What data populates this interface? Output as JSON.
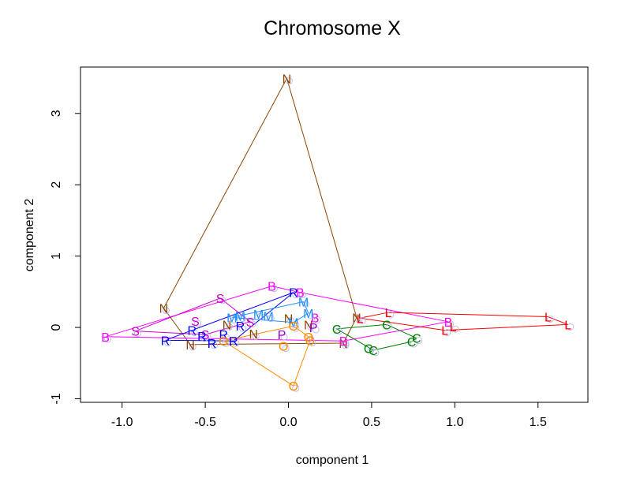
{
  "chart_data": {
    "type": "scatter",
    "title": "Chromosome X",
    "xlabel": "component 1",
    "ylabel": "component 2",
    "xlim": [
      -1.25,
      1.8
    ],
    "ylim": [
      -1.05,
      3.65
    ],
    "xticks": [
      -1.0,
      -0.5,
      0.0,
      0.5,
      1.0,
      1.5
    ],
    "xtick_labels": [
      "-1.0",
      "-0.5",
      "0.0",
      "0.5",
      "1.0",
      "1.5"
    ],
    "yticks": [
      -1,
      0,
      1,
      2,
      3
    ],
    "ytick_labels": [
      "-1",
      "0",
      "1",
      "2",
      "3"
    ],
    "grid": false,
    "legend": "none",
    "series": [
      {
        "name": "N",
        "label": "N",
        "color": "#8B4500",
        "points": [
          [
            -0.01,
            3.49
          ],
          [
            -0.75,
            0.27
          ],
          [
            -0.59,
            -0.24
          ],
          [
            -0.37,
            0.04
          ],
          [
            -0.21,
            -0.09
          ],
          [
            0.0,
            0.13
          ],
          [
            0.12,
            0.04
          ],
          [
            0.41,
            0.14
          ],
          [
            0.33,
            -0.22
          ]
        ],
        "hull": [
          [
            -0.01,
            3.49
          ],
          [
            -0.75,
            0.27
          ],
          [
            -0.59,
            -0.24
          ],
          [
            0.33,
            -0.22
          ],
          [
            0.41,
            0.14
          ]
        ]
      },
      {
        "name": "B",
        "label": "B",
        "color": "#FF00FF",
        "points": [
          [
            -1.1,
            -0.13
          ],
          [
            -0.1,
            0.58
          ],
          [
            0.07,
            0.49
          ],
          [
            0.16,
            0.14
          ],
          [
            0.96,
            0.08
          ],
          [
            0.33,
            -0.19
          ]
        ],
        "hull": [
          [
            -1.1,
            -0.13
          ],
          [
            -0.1,
            0.58
          ],
          [
            0.07,
            0.49
          ],
          [
            0.96,
            0.08
          ],
          [
            0.33,
            -0.19
          ]
        ]
      },
      {
        "name": "S",
        "label": "S",
        "color": "#CC00CC",
        "points": [
          [
            -0.92,
            -0.05
          ],
          [
            -0.41,
            0.41
          ],
          [
            -0.56,
            0.09
          ],
          [
            -0.5,
            -0.1
          ],
          [
            -0.23,
            0.08
          ]
        ],
        "hull": [
          [
            -0.92,
            -0.05
          ],
          [
            -0.41,
            0.41
          ],
          [
            -0.23,
            0.08
          ],
          [
            -0.5,
            -0.1
          ]
        ]
      },
      {
        "name": "L",
        "label": "L",
        "color": "#FF0000",
        "points": [
          [
            0.6,
            0.21
          ],
          [
            0.43,
            0.13
          ],
          [
            0.94,
            -0.04
          ],
          [
            0.99,
            0.01
          ],
          [
            1.56,
            0.15
          ],
          [
            1.68,
            0.04
          ]
        ],
        "hull": [
          [
            0.43,
            0.13
          ],
          [
            0.6,
            0.21
          ],
          [
            1.56,
            0.15
          ],
          [
            1.68,
            0.04
          ],
          [
            0.94,
            -0.04
          ]
        ]
      },
      {
        "name": "C",
        "label": "C",
        "color": "#008000",
        "points": [
          [
            0.29,
            -0.02
          ],
          [
            0.59,
            0.04
          ],
          [
            0.48,
            -0.29
          ],
          [
            0.51,
            -0.32
          ],
          [
            0.74,
            -0.2
          ],
          [
            0.77,
            -0.15
          ]
        ],
        "hull": [
          [
            0.29,
            -0.02
          ],
          [
            0.59,
            0.04
          ],
          [
            0.77,
            -0.15
          ],
          [
            0.74,
            -0.2
          ],
          [
            0.51,
            -0.32
          ]
        ]
      },
      {
        "name": "R",
        "label": "R",
        "color": "#0000FF",
        "points": [
          [
            -0.74,
            -0.18
          ],
          [
            -0.58,
            -0.04
          ],
          [
            -0.52,
            -0.12
          ],
          [
            -0.46,
            -0.22
          ],
          [
            -0.39,
            -0.1
          ],
          [
            -0.33,
            -0.19
          ],
          [
            -0.29,
            0.02
          ],
          [
            0.03,
            0.49
          ]
        ],
        "hull": [
          [
            -0.74,
            -0.18
          ],
          [
            -0.58,
            -0.04
          ],
          [
            0.03,
            0.49
          ],
          [
            -0.33,
            -0.19
          ]
        ]
      },
      {
        "name": "M",
        "label": "M",
        "color": "#1E90FF",
        "points": [
          [
            -0.34,
            0.14
          ],
          [
            -0.29,
            0.16
          ],
          [
            -0.18,
            0.19
          ],
          [
            -0.12,
            0.16
          ],
          [
            0.09,
            0.36
          ],
          [
            0.12,
            0.2
          ],
          [
            0.03,
            0.07
          ]
        ],
        "hull": [
          [
            -0.34,
            0.14
          ],
          [
            0.09,
            0.36
          ],
          [
            0.12,
            0.2
          ],
          [
            0.03,
            0.07
          ]
        ]
      },
      {
        "name": "O",
        "label": "O",
        "color": "#FF8C00",
        "points": [
          [
            -0.03,
            -0.26
          ],
          [
            0.03,
            -0.82
          ],
          [
            0.13,
            -0.18
          ],
          [
            0.12,
            -0.13
          ],
          [
            0.03,
            0.02
          ],
          [
            -0.39,
            -0.19
          ]
        ],
        "hull": [
          [
            -0.39,
            -0.19
          ],
          [
            0.03,
            0.02
          ],
          [
            0.12,
            -0.13
          ],
          [
            0.13,
            -0.18
          ],
          [
            0.03,
            -0.82
          ]
        ]
      },
      {
        "name": "P",
        "label": "P",
        "color": "#9400D3",
        "points": [
          [
            -0.04,
            -0.1
          ],
          [
            0.15,
            0.0
          ]
        ],
        "hull": []
      }
    ]
  }
}
